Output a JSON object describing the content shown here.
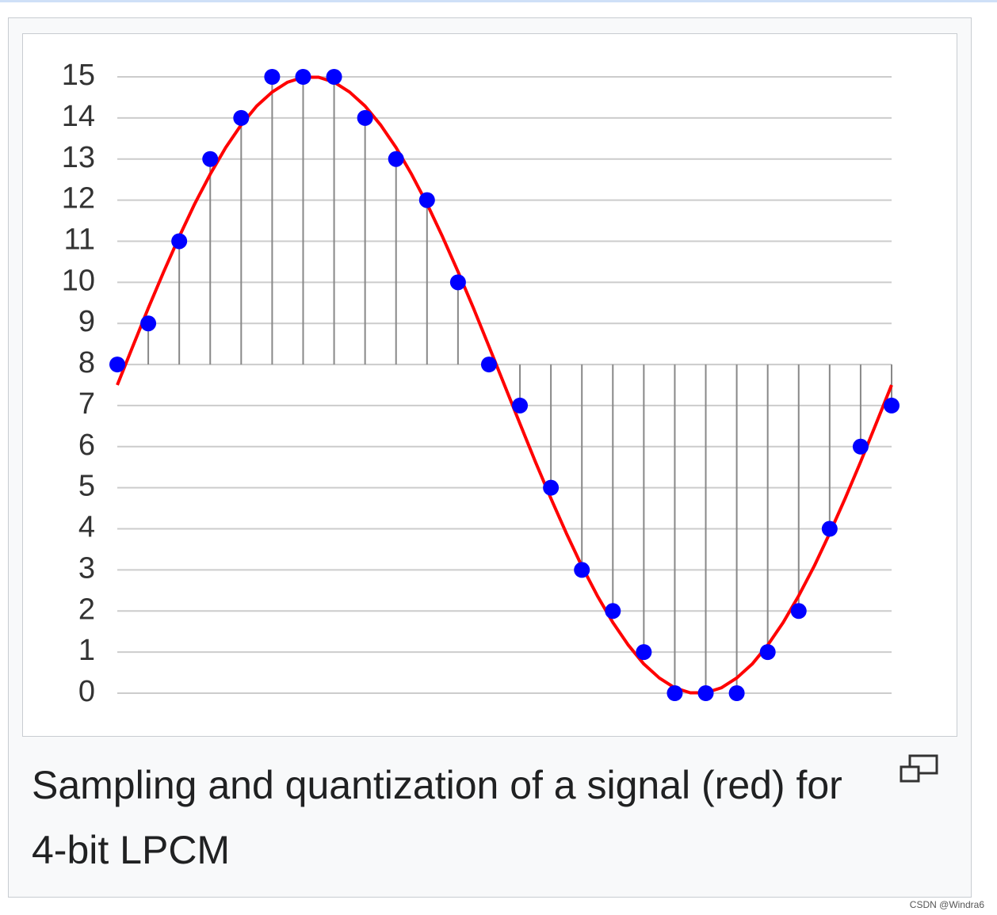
{
  "chart_data": {
    "type": "stem",
    "x": [
      0,
      1,
      2,
      3,
      4,
      5,
      6,
      7,
      8,
      9,
      10,
      11,
      12,
      13,
      14,
      15,
      16,
      17,
      18,
      19,
      20,
      21,
      22,
      23,
      24,
      25
    ],
    "values": [
      8,
      9,
      11,
      13,
      14,
      15,
      15,
      15,
      14,
      13,
      12,
      10,
      8,
      7,
      5,
      3,
      2,
      1,
      0,
      0,
      0,
      1,
      2,
      4,
      6,
      7
    ],
    "color": "#0000ff",
    "stem_color": "#888888",
    "baseline": 8,
    "curve": {
      "color": "#ff0000",
      "x": [
        0,
        0.5,
        1,
        1.5,
        2,
        2.5,
        3,
        3.5,
        4,
        4.5,
        5,
        5.5,
        6,
        6.5,
        7,
        7.5,
        8,
        8.5,
        9,
        9.5,
        10,
        10.5,
        11,
        11.5,
        12,
        12.5,
        13,
        13.5,
        14,
        14.5,
        15,
        15.5,
        16,
        16.5,
        17,
        17.5,
        18,
        18.5,
        19,
        19.5,
        20,
        20.5,
        21,
        21.5,
        22,
        22.5,
        23,
        23.5,
        24,
        24.5,
        25
      ],
      "values": [
        7.5,
        8.44,
        9.37,
        10.26,
        11.11,
        11.91,
        12.63,
        13.28,
        13.83,
        14.29,
        14.63,
        14.87,
        14.99,
        14.99,
        14.87,
        14.63,
        14.29,
        13.83,
        13.28,
        12.63,
        11.91,
        11.11,
        10.26,
        9.37,
        8.44,
        7.5,
        6.56,
        5.63,
        4.74,
        3.89,
        3.09,
        2.37,
        1.72,
        1.17,
        0.71,
        0.37,
        0.13,
        0.01,
        0.01,
        0.13,
        0.37,
        0.71,
        1.17,
        1.72,
        2.37,
        3.09,
        3.89,
        4.74,
        5.63,
        6.56,
        7.5
      ]
    },
    "xlim": [
      0,
      25
    ],
    "ylim": [
      0,
      15
    ],
    "yticks": [
      0,
      1,
      2,
      3,
      4,
      5,
      6,
      7,
      8,
      9,
      10,
      11,
      12,
      13,
      14,
      15
    ],
    "grid": true
  },
  "caption": "Sampling and quantization of a signal (red) for 4-bit LPCM",
  "watermark": "CSDN @Windra6"
}
